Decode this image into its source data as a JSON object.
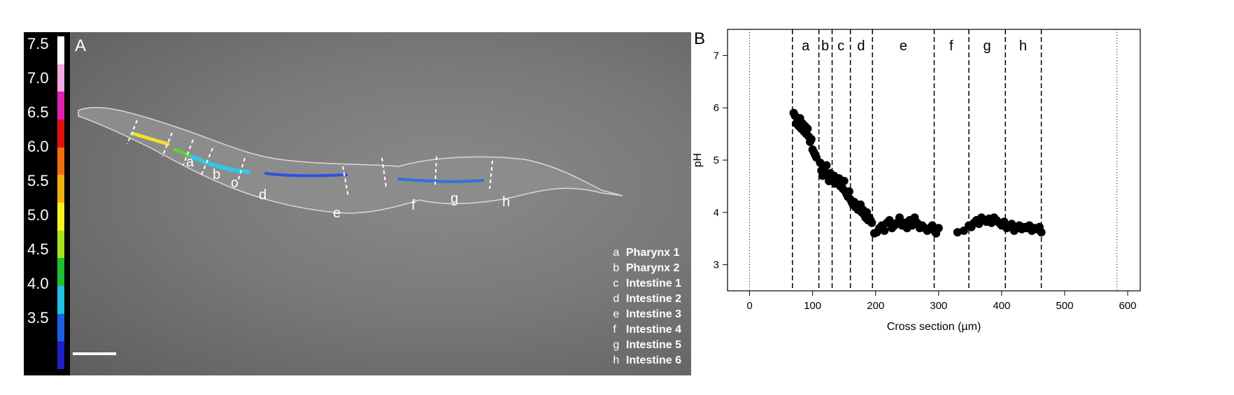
{
  "panel_a": {
    "letter": "A",
    "colorbar_ticks": [
      "7.5",
      "7.0",
      "6.5",
      "6.0",
      "5.5",
      "5.0",
      "4.5",
      "4.0",
      "3.5"
    ],
    "colorbar_colors": [
      "#ffffff",
      "#f3a8e0",
      "#e020b0",
      "#e01010",
      "#f07010",
      "#f0b010",
      "#f8f020",
      "#a8e020",
      "#20c030",
      "#20c0e0",
      "#2060e0",
      "#2020c8"
    ],
    "segment_labels": [
      "a",
      "b",
      "c",
      "d",
      "e",
      "f",
      "g",
      "h"
    ],
    "legend": [
      {
        "key": "a",
        "value": "Pharynx 1"
      },
      {
        "key": "b",
        "value": "Pharynx 2"
      },
      {
        "key": "c",
        "value": "Intestine 1"
      },
      {
        "key": "d",
        "value": "Intestine 2"
      },
      {
        "key": "e",
        "value": "Intestine 3"
      },
      {
        "key": "f",
        "value": "Intestine 4"
      },
      {
        "key": "g",
        "value": "Intestine 5"
      },
      {
        "key": "h",
        "value": "Intestine 6"
      }
    ]
  },
  "panel_b": {
    "letter": "B"
  },
  "chart_data": {
    "type": "scatter",
    "title": "",
    "xlabel": "Cross section (µm)",
    "ylabel": "pH",
    "xlim": [
      -35,
      620
    ],
    "ylim": [
      2.5,
      7.5
    ],
    "xticks": [
      0,
      100,
      200,
      300,
      400,
      500,
      600
    ],
    "yticks": [
      3,
      4,
      5,
      6,
      7
    ],
    "dotted_lines_x": [
      0,
      583
    ],
    "dashed_lines_x": [
      68,
      110,
      131,
      160,
      195,
      293,
      348,
      406,
      463
    ],
    "region_labels": [
      {
        "label": "a",
        "x": 89
      },
      {
        "label": "b",
        "x": 120
      },
      {
        "label": "c",
        "x": 145
      },
      {
        "label": "d",
        "x": 177
      },
      {
        "label": "e",
        "x": 244
      },
      {
        "label": "f",
        "x": 320
      },
      {
        "label": "g",
        "x": 377
      },
      {
        "label": "h",
        "x": 434
      }
    ],
    "series": [
      {
        "x": [
          70,
          72,
          74,
          76,
          78,
          80,
          82,
          84,
          86,
          88,
          90,
          92,
          94,
          96,
          98,
          100,
          102,
          104,
          106,
          112,
          114,
          116,
          118,
          120,
          122,
          124,
          126,
          128,
          130,
          132,
          134,
          136,
          138,
          140,
          142,
          144,
          146,
          148,
          150,
          152,
          154,
          156,
          158,
          160,
          162,
          164,
          166,
          168,
          170,
          172,
          174,
          176,
          178,
          180,
          182,
          184,
          186,
          188,
          190,
          192,
          194,
          198,
          202,
          206,
          210,
          214,
          218,
          222,
          226,
          230,
          234,
          238,
          242,
          246,
          250,
          254,
          258,
          262,
          266,
          270,
          274,
          278,
          282,
          286,
          290,
          293,
          296,
          300,
          330,
          340,
          348,
          352,
          356,
          360,
          364,
          368,
          372,
          376,
          380,
          384,
          388,
          392,
          396,
          400,
          404,
          408,
          412,
          416,
          420,
          424,
          428,
          432,
          436,
          440,
          444,
          448,
          452,
          456,
          460,
          463
        ],
        "y": [
          5.9,
          5.85,
          5.7,
          5.75,
          5.65,
          5.8,
          5.6,
          5.7,
          5.55,
          5.65,
          5.5,
          5.6,
          5.45,
          5.35,
          5.4,
          5.2,
          5.15,
          5.1,
          5.05,
          4.95,
          4.8,
          4.7,
          4.85,
          4.75,
          4.9,
          4.7,
          4.6,
          4.75,
          4.65,
          4.6,
          4.7,
          4.55,
          4.6,
          4.55,
          4.65,
          4.5,
          4.55,
          4.45,
          4.6,
          4.4,
          4.35,
          4.3,
          4.4,
          4.25,
          4.2,
          4.15,
          4.2,
          4.1,
          4.15,
          4.05,
          4.1,
          4.15,
          4.0,
          4.05,
          3.95,
          3.9,
          4.0,
          3.85,
          3.9,
          3.85,
          3.8,
          3.6,
          3.62,
          3.7,
          3.75,
          3.65,
          3.8,
          3.85,
          3.7,
          3.75,
          3.8,
          3.9,
          3.75,
          3.8,
          3.7,
          3.85,
          3.75,
          3.9,
          3.8,
          3.7,
          3.75,
          3.7,
          3.65,
          3.7,
          3.75,
          3.65,
          3.6,
          3.7,
          3.62,
          3.65,
          3.75,
          3.72,
          3.8,
          3.85,
          3.78,
          3.9,
          3.85,
          3.82,
          3.88,
          3.8,
          3.9,
          3.85,
          3.8,
          3.75,
          3.82,
          3.7,
          3.72,
          3.78,
          3.65,
          3.7,
          3.75,
          3.68,
          3.72,
          3.7,
          3.75,
          3.65,
          3.7,
          3.68,
          3.72,
          3.62
        ]
      }
    ]
  }
}
